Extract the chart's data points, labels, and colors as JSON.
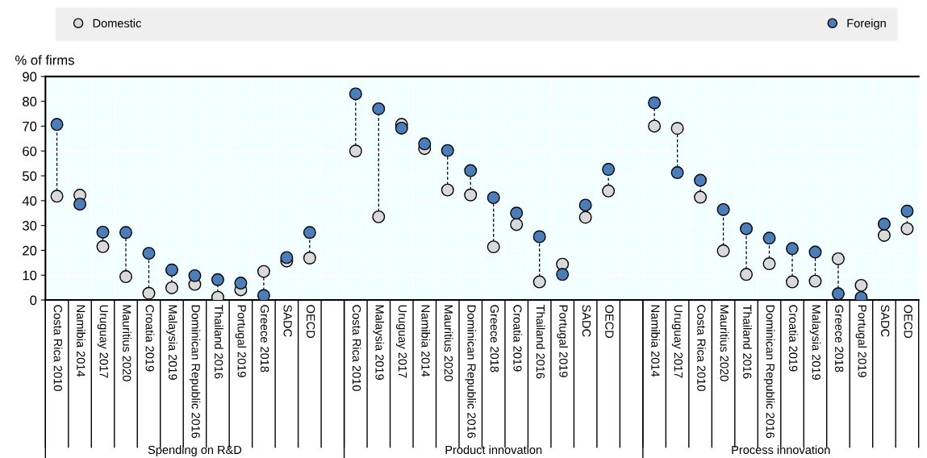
{
  "chart_data": {
    "type": "scatter",
    "ylabel": "% of firms",
    "categories": [
      "Costa Rica 2010",
      "Namibia 2014",
      "Uruguay 2017",
      "Mauritius 2020",
      "Croatia 2019",
      "Malaysia 2019",
      "Dominican Republic 2016",
      "Thailand 2016",
      "Portugal 2019",
      "Greece 2018",
      "SADC",
      "OECD",
      null,
      "Costa Rica 2010",
      "Malaysia 2019",
      "Uruguay 2017",
      "Namibia 2014",
      "Mauritius 2020",
      "Dominican Republic 2016",
      "Greece 2018",
      "Croatia 2019",
      "Thailand 2016",
      "Portugal 2019",
      "SADC",
      "OECD",
      null,
      "Namibia 2014",
      "Uruguay 2017",
      "Costa Rica 2010",
      "Mauritius 2020",
      "Thailand 2016",
      "Dominican Republic 2016",
      "Croatia 2019",
      "Malaysia 2019",
      "Greece 2018",
      "Portugal 2019",
      "SADC",
      "OECD"
    ],
    "series": [
      {
        "name": "Domestic",
        "color": "#d9d9d9",
        "values": [
          41.8,
          42.2,
          21.5,
          9.4,
          2.7,
          4.9,
          6.3,
          1.1,
          4.1,
          11.5,
          15.7,
          16.9,
          null,
          60.0,
          33.5,
          70.7,
          61.0,
          44.3,
          42.3,
          21.4,
          30.4,
          7.3,
          14.4,
          33.3,
          43.9,
          null,
          70.0,
          69.1,
          41.4,
          19.8,
          10.3,
          14.6,
          7.3,
          7.6,
          16.6,
          5.9,
          26.0,
          28.7
        ]
      },
      {
        "name": "Foreign",
        "color": "#4a7ebb",
        "values": [
          70.7,
          38.6,
          27.3,
          27.2,
          18.8,
          12.1,
          9.8,
          8.2,
          6.8,
          1.8,
          17.1,
          27.2,
          null,
          83.0,
          77.0,
          69.2,
          62.9,
          60.2,
          52.1,
          41.2,
          35.0,
          25.5,
          10.3,
          38.2,
          52.6,
          null,
          79.4,
          51.3,
          48.2,
          36.4,
          28.7,
          24.9,
          20.7,
          19.3,
          2.5,
          1.0,
          30.6,
          35.8
        ]
      }
    ],
    "annotations": [
      "Spending on R&D",
      "Product innovation",
      "Process innovation"
    ],
    "ylim": [
      0,
      90
    ],
    "yticks": [
      0,
      10,
      20,
      30,
      40,
      50,
      60,
      70,
      80,
      90
    ],
    "grid": true,
    "legend": "top",
    "marker": "circle"
  }
}
